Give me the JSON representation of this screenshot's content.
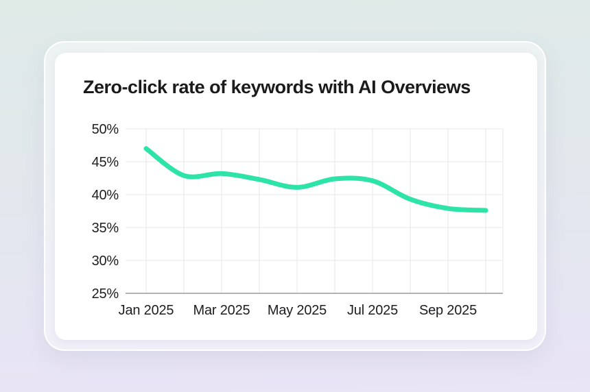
{
  "card": {
    "title": "Zero-click rate of keywords with AI Overviews"
  },
  "colors": {
    "background_top": "#dfeae7",
    "background_bottom": "#e9e4f6",
    "frame": "rgba(255,255,255,0.42)",
    "card": "#ffffff",
    "title_text": "#1b1b1b",
    "axis_text": "#1d1d1f",
    "grid": "#e7e7e7",
    "axis_line": "#b3b3b3",
    "line": "#2ee3a7"
  },
  "chart_data": {
    "type": "line",
    "title": "Zero-click rate of keywords with AI Overviews",
    "series_name": "Zero-click rate",
    "x": [
      "Jan 2025",
      "Feb 2025",
      "Mar 2025",
      "Apr 2025",
      "May 2025",
      "Jun 2025",
      "Jul 2025",
      "Aug 2025",
      "Sep 2025",
      "Oct 2025"
    ],
    "values": [
      47.0,
      42.9,
      43.2,
      42.3,
      41.1,
      42.4,
      42.1,
      39.3,
      37.9,
      37.6
    ],
    "unit": "%",
    "x_tick_labels": [
      "Jan 2025",
      "Mar 2025",
      "May 2025",
      "Jul 2025",
      "Sep 2025"
    ],
    "x_tick_month_indexes": [
      0,
      2,
      4,
      6,
      8
    ],
    "y_ticks": [
      50,
      45,
      40,
      35,
      30,
      25
    ],
    "y_tick_labels": [
      "50%",
      "45%",
      "40%",
      "35%",
      "30%",
      "25%"
    ],
    "ylim": [
      25,
      50
    ],
    "grid": true,
    "legend": false,
    "line_color": "#2ee3a7",
    "line_width": 7
  }
}
